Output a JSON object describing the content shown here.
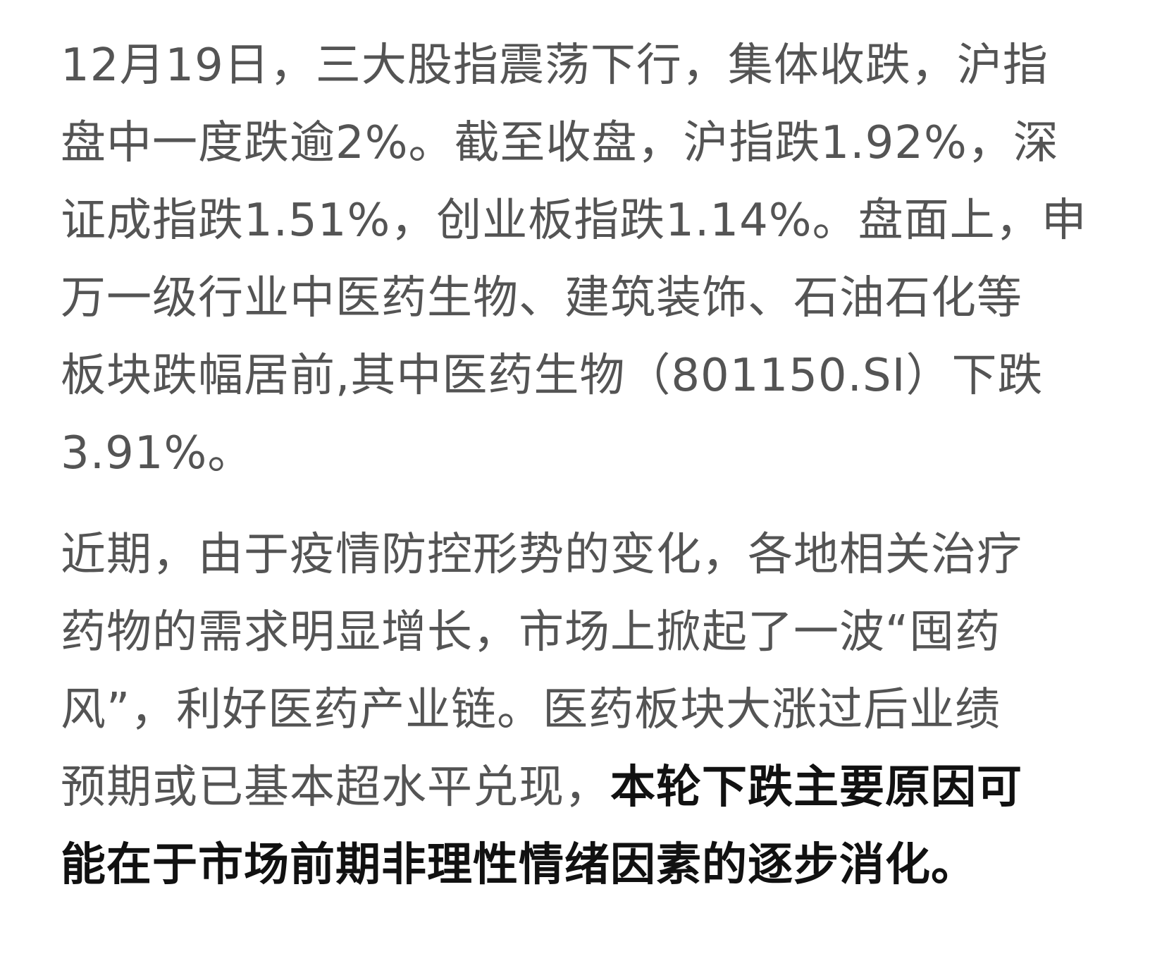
{
  "article": {
    "paragraph1": {
      "lines": [
        "12月19日，三大股指震荡下行，集体收跌，沪指",
        "盘中一度跌逾2%。截至收盘，沪指跌1.92%，深",
        "证成指跌1.51%，创业板指跌1.14%。盘面上，申",
        "万一级行业中医药生物、建筑装饰、石油石化等",
        "板块跌幅居前,其中医药生物（801150.SI）下跌",
        "3.91%。"
      ]
    },
    "paragraph2": {
      "lines": [
        "近期，由于疫情防控形势的变化，各地相关治疗",
        "药物的需求明显增长，市场上掀起了一波“囤药",
        "风”，利好医药产业链。医药板块大涨过后业绩"
      ],
      "line4_normal": "预期或已基本超水平兑现，",
      "line4_bold": "本轮下跌主要原因可",
      "line5_bold": "能在于市场前期非理性情绪因素的逐步消化。"
    },
    "colors": {
      "body_text": "#545454",
      "emphasis_text": "#111111",
      "background": "#ffffff"
    }
  }
}
